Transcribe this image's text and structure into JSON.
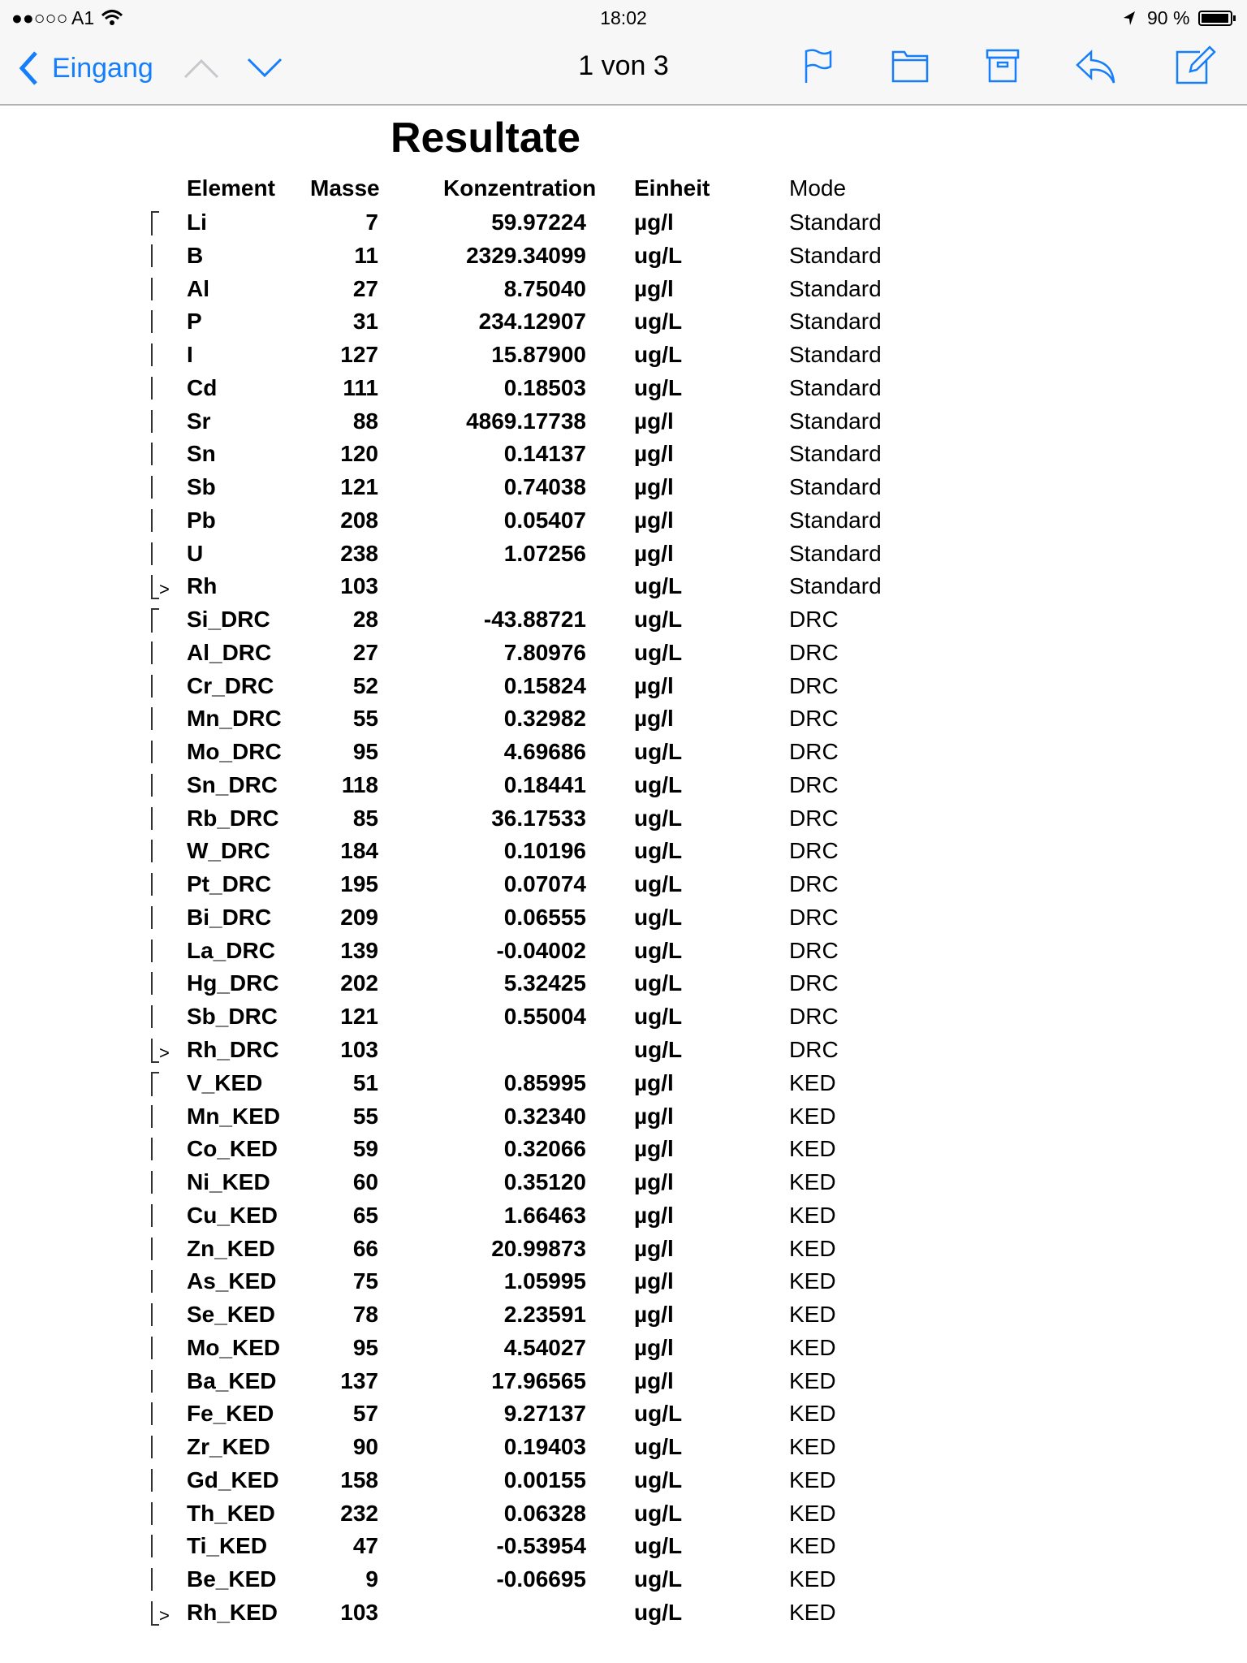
{
  "status_bar": {
    "carrier": "A1",
    "signal": "●●○○○",
    "time": "18:02",
    "battery": "90 %"
  },
  "nav": {
    "back_label": "Eingang",
    "position": "1 von 3",
    "accent": "#157efb"
  },
  "document": {
    "title": "Resultate",
    "headers": {
      "element": "Element",
      "masse": "Masse",
      "konzentration": "Konzentration",
      "einheit": "Einheit",
      "mode": "Mode"
    },
    "group_end_marker": ">",
    "rows": [
      {
        "element": "Li",
        "masse": "7",
        "konz": "59.97224",
        "unit": "µg/l",
        "mode": "Standard",
        "group": "start"
      },
      {
        "element": "B",
        "masse": "11",
        "konz": "2329.34099",
        "unit": "ug/L",
        "mode": "Standard",
        "group": "mid"
      },
      {
        "element": "Al",
        "masse": "27",
        "konz": "8.75040",
        "unit": "µg/l",
        "mode": "Standard",
        "group": "mid"
      },
      {
        "element": "P",
        "masse": "31",
        "konz": "234.12907",
        "unit": "ug/L",
        "mode": "Standard",
        "group": "mid"
      },
      {
        "element": "I",
        "masse": "127",
        "konz": "15.87900",
        "unit": "ug/L",
        "mode": "Standard",
        "group": "mid"
      },
      {
        "element": "Cd",
        "masse": "111",
        "konz": "0.18503",
        "unit": "ug/L",
        "mode": "Standard",
        "group": "mid"
      },
      {
        "element": "Sr",
        "masse": "88",
        "konz": "4869.17738",
        "unit": "µg/l",
        "mode": "Standard",
        "group": "mid"
      },
      {
        "element": "Sn",
        "masse": "120",
        "konz": "0.14137",
        "unit": "µg/l",
        "mode": "Standard",
        "group": "mid"
      },
      {
        "element": "Sb",
        "masse": "121",
        "konz": "0.74038",
        "unit": "µg/l",
        "mode": "Standard",
        "group": "mid"
      },
      {
        "element": "Pb",
        "masse": "208",
        "konz": "0.05407",
        "unit": "µg/l",
        "mode": "Standard",
        "group": "mid"
      },
      {
        "element": "U",
        "masse": "238",
        "konz": "1.07256",
        "unit": "µg/l",
        "mode": "Standard",
        "group": "mid"
      },
      {
        "element": "Rh",
        "masse": "103",
        "konz": "",
        "unit": "ug/L",
        "mode": "Standard",
        "group": "end"
      },
      {
        "element": "Si_DRC",
        "masse": "28",
        "konz": "-43.88721",
        "unit": "ug/L",
        "mode": "DRC",
        "group": "start"
      },
      {
        "element": "Al_DRC",
        "masse": "27",
        "konz": "7.80976",
        "unit": "ug/L",
        "mode": "DRC",
        "group": "mid"
      },
      {
        "element": "Cr_DRC",
        "masse": "52",
        "konz": "0.15824",
        "unit": "µg/l",
        "mode": "DRC",
        "group": "mid"
      },
      {
        "element": "Mn_DRC",
        "masse": "55",
        "konz": "0.32982",
        "unit": "µg/l",
        "mode": "DRC",
        "group": "mid"
      },
      {
        "element": "Mo_DRC",
        "masse": "95",
        "konz": "4.69686",
        "unit": "ug/L",
        "mode": "DRC",
        "group": "mid"
      },
      {
        "element": "Sn_DRC",
        "masse": "118",
        "konz": "0.18441",
        "unit": "ug/L",
        "mode": "DRC",
        "group": "mid"
      },
      {
        "element": "Rb_DRC",
        "masse": "85",
        "konz": "36.17533",
        "unit": "ug/L",
        "mode": "DRC",
        "group": "mid"
      },
      {
        "element": "W_DRC",
        "masse": "184",
        "konz": "0.10196",
        "unit": "ug/L",
        "mode": "DRC",
        "group": "mid"
      },
      {
        "element": "Pt_DRC",
        "masse": "195",
        "konz": "0.07074",
        "unit": "ug/L",
        "mode": "DRC",
        "group": "mid"
      },
      {
        "element": "Bi_DRC",
        "masse": "209",
        "konz": "0.06555",
        "unit": "ug/L",
        "mode": "DRC",
        "group": "mid"
      },
      {
        "element": "La_DRC",
        "masse": "139",
        "konz": "-0.04002",
        "unit": "ug/L",
        "mode": "DRC",
        "group": "mid"
      },
      {
        "element": "Hg_DRC",
        "masse": "202",
        "konz": "5.32425",
        "unit": "ug/L",
        "mode": "DRC",
        "group": "mid"
      },
      {
        "element": "Sb_DRC",
        "masse": "121",
        "konz": "0.55004",
        "unit": "ug/L",
        "mode": "DRC",
        "group": "mid"
      },
      {
        "element": "Rh_DRC",
        "masse": "103",
        "konz": "",
        "unit": "ug/L",
        "mode": "DRC",
        "group": "end"
      },
      {
        "element": "V_KED",
        "masse": "51",
        "konz": "0.85995",
        "unit": "µg/l",
        "mode": "KED",
        "group": "start"
      },
      {
        "element": "Mn_KED",
        "masse": "55",
        "konz": "0.32340",
        "unit": "µg/l",
        "mode": "KED",
        "group": "mid"
      },
      {
        "element": "Co_KED",
        "masse": "59",
        "konz": "0.32066",
        "unit": "µg/l",
        "mode": "KED",
        "group": "mid"
      },
      {
        "element": "Ni_KED",
        "masse": "60",
        "konz": "0.35120",
        "unit": "µg/l",
        "mode": "KED",
        "group": "mid"
      },
      {
        "element": "Cu_KED",
        "masse": "65",
        "konz": "1.66463",
        "unit": "µg/l",
        "mode": "KED",
        "group": "mid"
      },
      {
        "element": "Zn_KED",
        "masse": "66",
        "konz": "20.99873",
        "unit": "µg/l",
        "mode": "KED",
        "group": "mid"
      },
      {
        "element": "As_KED",
        "masse": "75",
        "konz": "1.05995",
        "unit": "µg/l",
        "mode": "KED",
        "group": "mid"
      },
      {
        "element": "Se_KED",
        "masse": "78",
        "konz": "2.23591",
        "unit": "µg/l",
        "mode": "KED",
        "group": "mid"
      },
      {
        "element": "Mo_KED",
        "masse": "95",
        "konz": "4.54027",
        "unit": "µg/l",
        "mode": "KED",
        "group": "mid"
      },
      {
        "element": "Ba_KED",
        "masse": "137",
        "konz": "17.96565",
        "unit": "µg/l",
        "mode": "KED",
        "group": "mid"
      },
      {
        "element": "Fe_KED",
        "masse": "57",
        "konz": "9.27137",
        "unit": "ug/L",
        "mode": "KED",
        "group": "mid"
      },
      {
        "element": "Zr_KED",
        "masse": "90",
        "konz": "0.19403",
        "unit": "ug/L",
        "mode": "KED",
        "group": "mid"
      },
      {
        "element": "Gd_KED",
        "masse": "158",
        "konz": "0.00155",
        "unit": "ug/L",
        "mode": "KED",
        "group": "mid"
      },
      {
        "element": "Th_KED",
        "masse": "232",
        "konz": "0.06328",
        "unit": "ug/L",
        "mode": "KED",
        "group": "mid"
      },
      {
        "element": "Ti_KED",
        "masse": "47",
        "konz": "-0.53954",
        "unit": "ug/L",
        "mode": "KED",
        "group": "mid"
      },
      {
        "element": "Be_KED",
        "masse": "9",
        "konz": "-0.06695",
        "unit": "ug/L",
        "mode": "KED",
        "group": "mid"
      },
      {
        "element": "Rh_KED",
        "masse": "103",
        "konz": "",
        "unit": "ug/L",
        "mode": "KED",
        "group": "end"
      }
    ]
  }
}
